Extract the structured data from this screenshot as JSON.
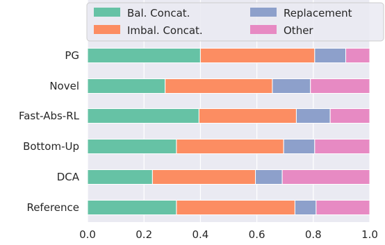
{
  "chart_data": {
    "type": "bar",
    "orientation": "horizontal",
    "stacked": true,
    "categories": [
      "PG",
      "Novel",
      "Fast-Abs-RL",
      "Bottom-Up",
      "DCA",
      "Reference"
    ],
    "series": [
      {
        "name": "Bal. Concat.",
        "color": "#66c2a5",
        "values": [
          0.4,
          0.275,
          0.395,
          0.315,
          0.23,
          0.315
        ]
      },
      {
        "name": "Imbal. Concat.",
        "color": "#fc8d62",
        "values": [
          0.405,
          0.38,
          0.345,
          0.38,
          0.365,
          0.42
        ]
      },
      {
        "name": "Replacement",
        "color": "#8da0cb",
        "values": [
          0.11,
          0.135,
          0.12,
          0.11,
          0.095,
          0.075
        ]
      },
      {
        "name": "Other",
        "color": "#e78ac3",
        "values": [
          0.085,
          0.21,
          0.14,
          0.195,
          0.31,
          0.19
        ]
      }
    ],
    "xlim": [
      0,
      1.0
    ],
    "xticks": [
      "0.0",
      "0.2",
      "0.4",
      "0.6",
      "0.8",
      "1.0"
    ],
    "xlabel": "",
    "ylabel": "",
    "title": "",
    "grid": true,
    "legend_position": "top",
    "background_color": "#eaeaf2"
  }
}
